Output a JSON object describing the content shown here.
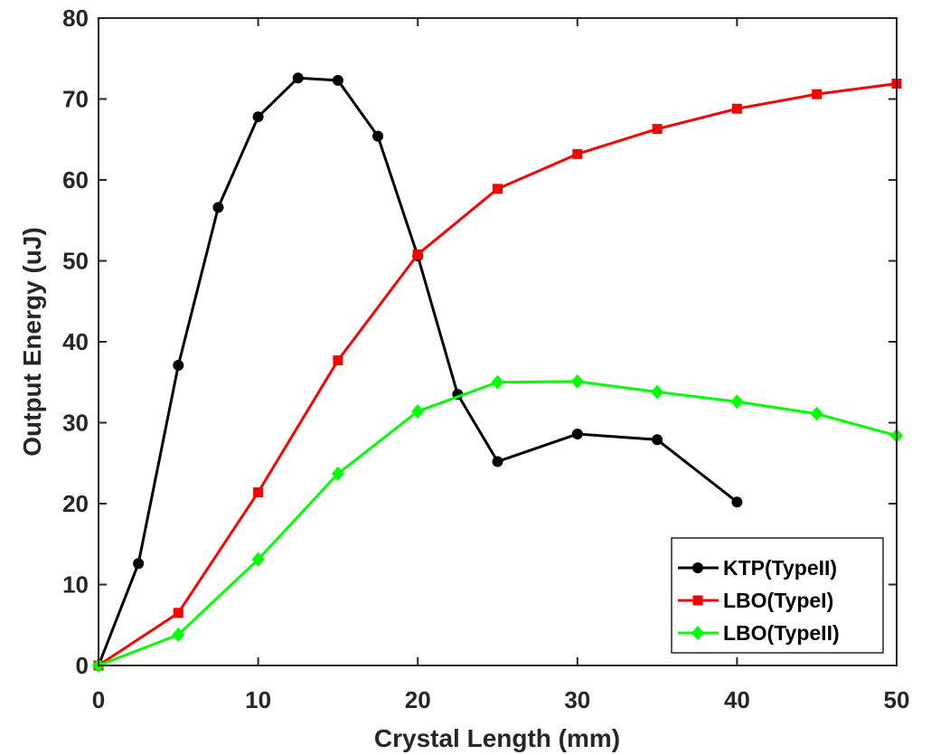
{
  "chart_data": {
    "type": "line",
    "title": "",
    "xlabel": "Crystal Length (mm)",
    "ylabel": "Output Energy (uJ)",
    "xlim": [
      0,
      50
    ],
    "ylim": [
      0,
      80
    ],
    "xticks": [
      0,
      10,
      20,
      30,
      40,
      50
    ],
    "yticks": [
      0,
      10,
      20,
      30,
      40,
      50,
      60,
      70,
      80
    ],
    "grid": false,
    "legend_position": "bottom-right",
    "series": [
      {
        "name": "KTP(TypeII)",
        "color": "#000000",
        "marker": "circle",
        "x": [
          0,
          2.5,
          5,
          7.5,
          10,
          12.5,
          15,
          17.5,
          20,
          22.5,
          25,
          30,
          35,
          40
        ],
        "y": [
          0,
          12.6,
          37.1,
          56.6,
          67.8,
          72.6,
          72.3,
          65.4,
          50.6,
          33.5,
          25.2,
          28.6,
          27.9,
          20.2
        ]
      },
      {
        "name": "LBO(TypeI)",
        "color": "#ff0000",
        "marker": "square",
        "x": [
          0,
          5,
          10,
          15,
          20,
          25,
          30,
          35,
          40,
          45,
          50
        ],
        "y": [
          0,
          6.5,
          21.4,
          37.7,
          50.8,
          58.9,
          63.2,
          66.3,
          68.8,
          70.6,
          71.9
        ]
      },
      {
        "name": "LBO(TypeII)",
        "color": "#00ff00",
        "marker": "diamond",
        "x": [
          0,
          5,
          10,
          15,
          20,
          25,
          30,
          35,
          40,
          45,
          50
        ],
        "y": [
          0,
          3.8,
          13.1,
          23.7,
          31.4,
          35.0,
          35.1,
          33.8,
          32.6,
          31.1,
          28.4
        ]
      }
    ]
  }
}
